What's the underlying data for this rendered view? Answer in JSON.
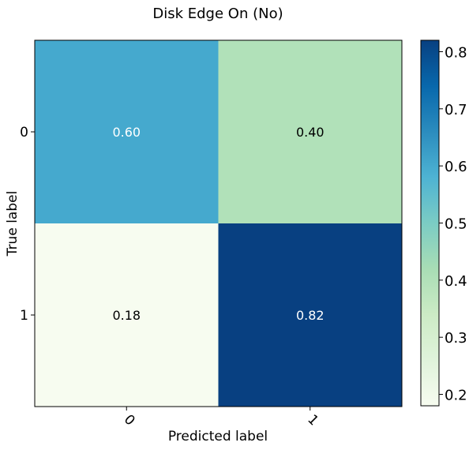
{
  "chart_data": {
    "type": "heatmap",
    "title": "Disk Edge On (No)",
    "xlabel": "Predicted label",
    "ylabel": "True label",
    "x_categories": [
      "0",
      "1"
    ],
    "y_categories": [
      "0",
      "1"
    ],
    "values": [
      [
        0.6,
        0.4
      ],
      [
        0.18,
        0.82
      ]
    ],
    "cell_labels": [
      [
        "0.60",
        "0.40"
      ],
      [
        "0.18",
        "0.82"
      ]
    ],
    "colormap": "GnBu",
    "colorbar": {
      "range": [
        0.18,
        0.82
      ],
      "ticks": [
        0.2,
        0.3,
        0.4,
        0.5,
        0.6,
        0.7,
        0.8
      ],
      "tick_labels": [
        "0.2",
        "0.3",
        "0.4",
        "0.5",
        "0.6",
        "0.7",
        "0.8"
      ]
    }
  }
}
